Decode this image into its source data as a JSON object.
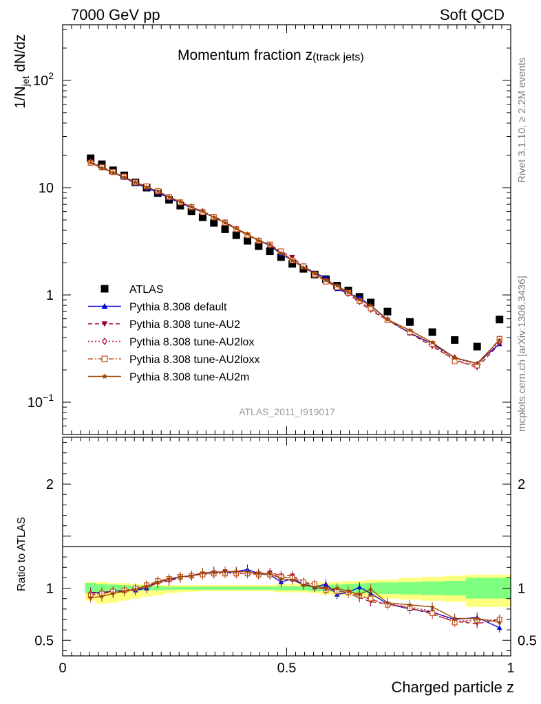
{
  "header": {
    "left": "7000 GeV pp",
    "right": "Soft QCD"
  },
  "side_labels": {
    "rivet": "Rivet 3.1.10, ≥ 2.2M events",
    "mcplots": "mcplots.cern.ch [arXiv:1306.3436]"
  },
  "chart_data": [
    {
      "type": "scatter",
      "panel": "main",
      "title": "Momentum fraction z",
      "title_sub": "(track jets)",
      "ylabel_parts": {
        "pre": "1/N",
        "sub": "jet",
        "post": " dN/dz"
      },
      "yscale": "log",
      "ylim": [
        0.05,
        330
      ],
      "xlim": [
        0,
        1
      ],
      "y_ticks": [
        {
          "value": 0.1,
          "label_base": "10",
          "label_exp": "−1"
        },
        {
          "value": 1,
          "label_base": "1",
          "label_exp": ""
        },
        {
          "value": 10,
          "label_base": "10",
          "label_exp": ""
        },
        {
          "value": 100,
          "label_base": "10",
          "label_exp": "2"
        }
      ],
      "watermark": "ATLAS_2011_I919017",
      "legend_position": "lower-left",
      "x": [
        0.0625,
        0.0875,
        0.1125,
        0.1375,
        0.1625,
        0.1875,
        0.2125,
        0.2375,
        0.2625,
        0.2875,
        0.3125,
        0.3375,
        0.3625,
        0.3875,
        0.4125,
        0.4375,
        0.4625,
        0.4875,
        0.5125,
        0.5375,
        0.5625,
        0.5875,
        0.6125,
        0.6375,
        0.6625,
        0.6875,
        0.725,
        0.775,
        0.825,
        0.875,
        0.925,
        0.975
      ],
      "series": [
        {
          "name": "ATLAS",
          "style": "data",
          "color": "#000000",
          "marker": "square",
          "values": [
            18.8,
            16.5,
            14.5,
            13.0,
            11.2,
            10.0,
            8.9,
            7.7,
            6.8,
            6.0,
            5.3,
            4.7,
            4.1,
            3.6,
            3.2,
            2.85,
            2.55,
            2.25,
            1.95,
            1.75,
            1.55,
            1.4,
            1.22,
            1.1,
            0.96,
            0.85,
            0.7,
            0.56,
            0.45,
            0.38,
            0.33,
            0.59
          ]
        },
        {
          "name": "Pythia 8.308 default",
          "style": "solid",
          "color": "#0000dd",
          "marker": "triangle-up",
          "values": [
            17.2,
            15.3,
            13.8,
            12.4,
            11.0,
            9.9,
            9.0,
            8.0,
            7.2,
            6.5,
            5.9,
            5.3,
            4.7,
            4.1,
            3.68,
            3.2,
            2.9,
            2.4,
            2.1,
            1.85,
            1.6,
            1.45,
            1.14,
            1.03,
            0.95,
            0.79,
            0.59,
            0.44,
            0.35,
            0.26,
            0.23,
            0.35
          ]
        },
        {
          "name": "Pythia 8.308 tune-AU2",
          "style": "dashed",
          "color": "#990033",
          "marker": "triangle-down",
          "values": [
            17.3,
            15.5,
            13.9,
            12.6,
            11.1,
            10.1,
            9.2,
            8.1,
            7.3,
            6.6,
            6.0,
            5.4,
            4.8,
            4.15,
            3.6,
            3.25,
            2.95,
            2.55,
            2.25,
            1.85,
            1.57,
            1.37,
            1.19,
            1.03,
            0.85,
            0.72,
            0.58,
            0.44,
            0.33,
            0.25,
            0.21,
            0.35
          ]
        },
        {
          "name": "Pythia 8.308 tune-AU2lox",
          "style": "dotted",
          "color": "#aa1144",
          "marker": "diamond",
          "values": [
            17.5,
            15.6,
            14.0,
            12.6,
            11.2,
            10.1,
            9.2,
            8.1,
            7.3,
            6.6,
            6.0,
            5.3,
            4.7,
            4.1,
            3.6,
            3.2,
            2.9,
            2.5,
            2.1,
            1.85,
            1.57,
            1.35,
            1.18,
            1.03,
            0.88,
            0.74,
            0.59,
            0.45,
            0.34,
            0.26,
            0.22,
            0.37
          ]
        },
        {
          "name": "Pythia 8.308 tune-AU2loxx",
          "style": "dashdot",
          "color": "#cc5522",
          "marker": "square-open",
          "values": [
            17.0,
            15.5,
            14.0,
            12.7,
            11.2,
            10.3,
            9.3,
            8.2,
            7.3,
            6.6,
            5.9,
            5.3,
            4.7,
            4.1,
            3.6,
            3.2,
            2.95,
            2.55,
            2.1,
            1.85,
            1.55,
            1.33,
            1.18,
            1.05,
            0.88,
            0.75,
            0.58,
            0.45,
            0.35,
            0.24,
            0.22,
            0.39
          ]
        },
        {
          "name": "Pythia 8.308 tune-AU2m",
          "style": "solid",
          "color": "#994400",
          "marker": "star",
          "values": [
            17.1,
            15.2,
            13.8,
            12.5,
            11.2,
            10.1,
            9.3,
            8.2,
            7.4,
            6.6,
            6.0,
            5.3,
            4.7,
            4.15,
            3.7,
            3.2,
            2.95,
            2.45,
            2.1,
            1.8,
            1.58,
            1.37,
            1.22,
            1.06,
            0.9,
            0.8,
            0.59,
            0.47,
            0.36,
            0.26,
            0.23,
            0.38
          ]
        }
      ]
    },
    {
      "type": "scatter",
      "panel": "ratio",
      "ylabel": "Ratio to ATLAS",
      "xlabel": "Charged particle z",
      "ylim": [
        0.35,
        2.45
      ],
      "xlim": [
        0,
        1
      ],
      "x_ticks": [
        {
          "value": 0,
          "label": "0"
        },
        {
          "value": 0.5,
          "label": "0.5"
        },
        {
          "value": 1,
          "label": "1"
        }
      ],
      "y_ticks": [
        {
          "value": 0.5,
          "label": "0.5"
        },
        {
          "value": 1,
          "label": "1"
        },
        {
          "value": 2,
          "label": "2"
        }
      ],
      "band_colors": {
        "inner": "#7fff7f",
        "outer": "#ffff7f"
      },
      "bands": {
        "x_edges": [
          0.05,
          0.075,
          0.1,
          0.125,
          0.15,
          0.175,
          0.2,
          0.225,
          0.25,
          0.275,
          0.3,
          0.325,
          0.35,
          0.375,
          0.4,
          0.425,
          0.45,
          0.475,
          0.5,
          0.525,
          0.55,
          0.575,
          0.6,
          0.625,
          0.65,
          0.675,
          0.7,
          0.75,
          0.8,
          0.85,
          0.9,
          0.95,
          1.0
        ],
        "inner_low": [
          0.95,
          0.96,
          0.965,
          0.97,
          0.975,
          0.98,
          0.98,
          0.985,
          0.985,
          0.985,
          0.985,
          0.985,
          0.985,
          0.985,
          0.985,
          0.985,
          0.985,
          0.98,
          0.98,
          0.98,
          0.97,
          0.97,
          0.965,
          0.96,
          0.955,
          0.95,
          0.945,
          0.94,
          0.935,
          0.93,
          0.9,
          0.9
        ],
        "inner_high": [
          1.05,
          1.04,
          1.035,
          1.03,
          1.025,
          1.02,
          1.02,
          1.015,
          1.015,
          1.015,
          1.015,
          1.015,
          1.015,
          1.015,
          1.015,
          1.015,
          1.015,
          1.02,
          1.02,
          1.02,
          1.03,
          1.03,
          1.035,
          1.04,
          1.045,
          1.05,
          1.055,
          1.06,
          1.065,
          1.07,
          1.1,
          1.1
        ],
        "outer_low": [
          0.88,
          0.85,
          0.86,
          0.88,
          0.9,
          0.92,
          0.93,
          0.95,
          0.96,
          0.965,
          0.97,
          0.97,
          0.97,
          0.97,
          0.97,
          0.97,
          0.97,
          0.96,
          0.96,
          0.96,
          0.95,
          0.94,
          0.93,
          0.93,
          0.92,
          0.91,
          0.9,
          0.89,
          0.88,
          0.87,
          0.82,
          0.82
        ],
        "outer_high": [
          1.06,
          1.06,
          1.05,
          1.05,
          1.04,
          1.04,
          1.03,
          1.03,
          1.03,
          1.03,
          1.03,
          1.03,
          1.03,
          1.03,
          1.03,
          1.03,
          1.03,
          1.04,
          1.04,
          1.04,
          1.05,
          1.06,
          1.06,
          1.07,
          1.07,
          1.08,
          1.08,
          1.1,
          1.11,
          1.12,
          1.13,
          1.13
        ]
      },
      "x": [
        0.0625,
        0.0875,
        0.1125,
        0.1375,
        0.1625,
        0.1875,
        0.2125,
        0.2375,
        0.2625,
        0.2875,
        0.3125,
        0.3375,
        0.3625,
        0.3875,
        0.4125,
        0.4375,
        0.4625,
        0.4875,
        0.5125,
        0.5375,
        0.5625,
        0.5875,
        0.6125,
        0.6375,
        0.6625,
        0.6875,
        0.725,
        0.775,
        0.825,
        0.875,
        0.925,
        0.975
      ],
      "series": [
        {
          "name": "Pythia 8.308 default",
          "color": "#0000dd",
          "marker": "triangle-up",
          "style": "solid",
          "values": [
            0.96,
            0.96,
            0.97,
            0.98,
            0.98,
            1.0,
            1.06,
            1.08,
            1.11,
            1.12,
            1.14,
            1.16,
            1.15,
            1.16,
            1.18,
            1.14,
            1.13,
            1.06,
            1.09,
            1.04,
            1.01,
            1.04,
            0.94,
            0.96,
            1.01,
            0.95,
            0.85,
            0.8,
            0.77,
            0.7,
            0.72,
            0.62
          ]
        },
        {
          "name": "Pythia 8.308 tune-AU2",
          "color": "#990033",
          "marker": "triangle-down",
          "style": "dashed",
          "values": [
            0.94,
            0.95,
            0.96,
            0.97,
            0.98,
            1.01,
            1.05,
            1.07,
            1.1,
            1.12,
            1.14,
            1.15,
            1.16,
            1.15,
            1.14,
            1.14,
            1.15,
            1.12,
            1.12,
            1.06,
            1.02,
            1.0,
            0.98,
            0.95,
            0.91,
            0.87,
            0.85,
            0.81,
            0.75,
            0.68,
            0.66,
            0.7
          ]
        },
        {
          "name": "Pythia 8.308 tune-AU2lox",
          "color": "#aa1144",
          "marker": "diamond",
          "style": "dotted",
          "values": [
            0.95,
            0.96,
            0.97,
            0.98,
            0.99,
            1.02,
            1.06,
            1.08,
            1.1,
            1.12,
            1.13,
            1.14,
            1.15,
            1.14,
            1.14,
            1.13,
            1.13,
            1.1,
            1.1,
            1.04,
            1.01,
            0.99,
            0.97,
            0.96,
            0.93,
            0.89,
            0.85,
            0.82,
            0.78,
            0.68,
            0.7,
            0.69
          ]
        },
        {
          "name": "Pythia 8.308 tune-AU2loxx",
          "color": "#cc5522",
          "marker": "square-open",
          "style": "dashdot",
          "values": [
            0.93,
            0.95,
            0.97,
            0.98,
            1.0,
            1.03,
            1.07,
            1.09,
            1.11,
            1.12,
            1.13,
            1.14,
            1.14,
            1.14,
            1.14,
            1.13,
            1.13,
            1.11,
            1.1,
            1.06,
            1.04,
            0.98,
            0.97,
            0.96,
            0.93,
            0.9,
            0.84,
            0.81,
            0.76,
            0.67,
            0.69,
            0.7
          ]
        },
        {
          "name": "Pythia 8.308 tune-AU2m",
          "color": "#994400",
          "marker": "star",
          "style": "solid",
          "values": [
            0.91,
            0.92,
            0.95,
            0.97,
            0.99,
            1.02,
            1.06,
            1.09,
            1.11,
            1.12,
            1.15,
            1.15,
            1.16,
            1.16,
            1.16,
            1.14,
            1.14,
            1.09,
            1.08,
            1.03,
            1.01,
            0.99,
            1.0,
            0.97,
            0.94,
            0.99,
            0.86,
            0.84,
            0.82,
            0.71,
            0.71,
            0.67
          ]
        }
      ]
    }
  ]
}
